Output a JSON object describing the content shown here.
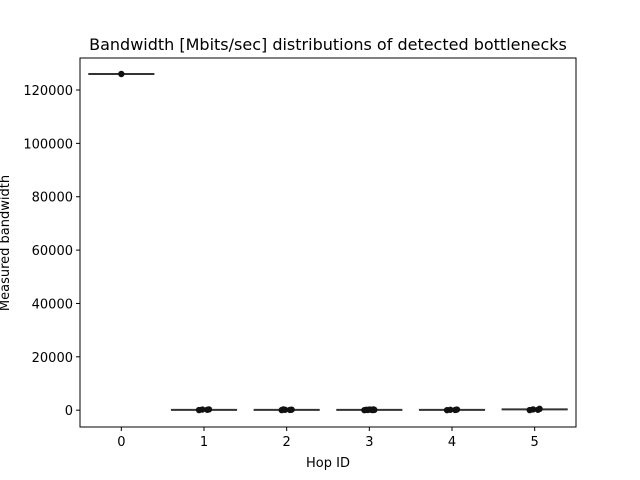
{
  "chart_data": {
    "type": "box_strip",
    "title": "Bandwidth [Mbits/sec] distributions of detected bottlenecks",
    "xlabel": "Hop ID",
    "ylabel": "Measured bandwidth",
    "categories": [
      "0",
      "1",
      "2",
      "3",
      "4",
      "5"
    ],
    "ylim": [
      -6300,
      132000
    ],
    "yticks": [
      0,
      20000,
      40000,
      60000,
      80000,
      100000,
      120000
    ],
    "ytick_labels": [
      "0",
      "20000",
      "40000",
      "60000",
      "80000",
      "100000",
      "120000"
    ],
    "grid": false,
    "colors": {
      "box_line": "#333333",
      "point": "#111111",
      "axis": "#000000"
    },
    "boxes": [
      {
        "category": "0",
        "median": 126000
      },
      {
        "category": "1",
        "median": 100
      },
      {
        "category": "2",
        "median": 100
      },
      {
        "category": "3",
        "median": 100
      },
      {
        "category": "4",
        "median": 100
      },
      {
        "category": "5",
        "median": 300
      }
    ],
    "points": [
      {
        "category": "0",
        "values": [
          126000
        ]
      },
      {
        "category": "1",
        "values": [
          50,
          150,
          250,
          300
        ]
      },
      {
        "category": "2",
        "values": [
          30,
          100,
          150,
          200,
          300
        ]
      },
      {
        "category": "3",
        "values": [
          20,
          50,
          80,
          120,
          150,
          200,
          250,
          300
        ]
      },
      {
        "category": "4",
        "values": [
          20,
          80,
          150,
          250
        ]
      },
      {
        "category": "5",
        "values": [
          50,
          150,
          300,
          500
        ]
      }
    ]
  }
}
